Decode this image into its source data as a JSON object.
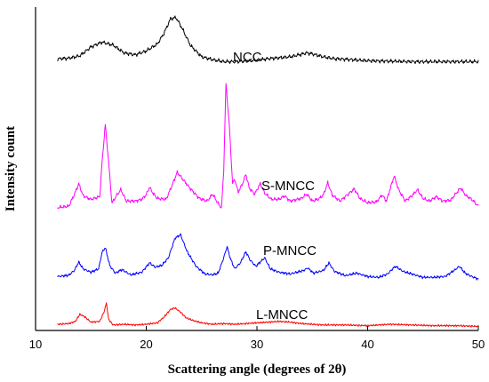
{
  "chart_data": {
    "type": "line",
    "title": "",
    "xlabel": "Scattering angle (degrees of 2θ)",
    "ylabel": "Intensity count",
    "xlim": [
      10,
      50
    ],
    "xticks": [
      10,
      20,
      30,
      40,
      50
    ],
    "xtick_labels": [
      "10",
      "20",
      "30",
      "40",
      "50"
    ],
    "grid": false,
    "legend": "inline labels",
    "series": [
      {
        "name": "NCC",
        "color": "#000000",
        "points": [
          [
            12.0,
            0.18
          ],
          [
            13.0,
            0.19
          ],
          [
            14.0,
            0.24
          ],
          [
            15.0,
            0.42
          ],
          [
            16.0,
            0.52
          ],
          [
            17.0,
            0.46
          ],
          [
            18.0,
            0.3
          ],
          [
            19.0,
            0.26
          ],
          [
            20.0,
            0.34
          ],
          [
            21.0,
            0.48
          ],
          [
            21.6,
            0.7
          ],
          [
            22.2,
            1.0
          ],
          [
            22.7,
            1.02
          ],
          [
            23.2,
            0.82
          ],
          [
            24.0,
            0.45
          ],
          [
            25.0,
            0.22
          ],
          [
            26.0,
            0.16
          ],
          [
            27.0,
            0.12
          ],
          [
            28.0,
            0.12
          ],
          [
            29.0,
            0.13
          ],
          [
            30.0,
            0.15
          ],
          [
            31.0,
            0.18
          ],
          [
            32.0,
            0.2
          ],
          [
            33.0,
            0.22
          ],
          [
            34.0,
            0.27
          ],
          [
            34.5,
            0.3
          ],
          [
            35.0,
            0.28
          ],
          [
            36.0,
            0.22
          ],
          [
            37.0,
            0.18
          ],
          [
            38.0,
            0.17
          ],
          [
            40.0,
            0.14
          ],
          [
            42.0,
            0.13
          ],
          [
            44.0,
            0.12
          ],
          [
            46.0,
            0.12
          ],
          [
            48.0,
            0.12
          ],
          [
            50.0,
            0.12
          ]
        ]
      },
      {
        "name": "S-MNCC",
        "color": "#ff00ff",
        "points": [
          [
            12.0,
            0.15
          ],
          [
            13.0,
            0.18
          ],
          [
            13.5,
            0.45
          ],
          [
            13.9,
            0.7
          ],
          [
            14.3,
            0.42
          ],
          [
            15.0,
            0.34
          ],
          [
            15.8,
            0.4
          ],
          [
            16.0,
            1.16
          ],
          [
            16.3,
            2.06
          ],
          [
            16.6,
            1.2
          ],
          [
            16.9,
            0.25
          ],
          [
            17.3,
            0.42
          ],
          [
            17.7,
            0.56
          ],
          [
            18.2,
            0.3
          ],
          [
            19.0,
            0.3
          ],
          [
            19.6,
            0.34
          ],
          [
            20.0,
            0.45
          ],
          [
            20.3,
            0.62
          ],
          [
            20.6,
            0.48
          ],
          [
            21.0,
            0.36
          ],
          [
            21.8,
            0.34
          ],
          [
            22.3,
            0.64
          ],
          [
            22.8,
            0.96
          ],
          [
            23.3,
            0.8
          ],
          [
            24.0,
            0.58
          ],
          [
            24.8,
            0.36
          ],
          [
            25.5,
            0.3
          ],
          [
            26.0,
            0.46
          ],
          [
            26.4,
            0.28
          ],
          [
            26.8,
            0.14
          ],
          [
            27.0,
            1.0
          ],
          [
            27.2,
            3.0
          ],
          [
            27.5,
            2.05
          ],
          [
            27.8,
            0.7
          ],
          [
            28.0,
            0.8
          ],
          [
            28.3,
            0.5
          ],
          [
            28.7,
            0.7
          ],
          [
            29.0,
            0.92
          ],
          [
            29.3,
            0.6
          ],
          [
            29.8,
            0.46
          ],
          [
            30.3,
            0.7
          ],
          [
            30.7,
            0.48
          ],
          [
            31.3,
            0.34
          ],
          [
            32.0,
            0.34
          ],
          [
            32.5,
            0.42
          ],
          [
            33.0,
            0.3
          ],
          [
            34.0,
            0.36
          ],
          [
            34.5,
            0.46
          ],
          [
            35.0,
            0.3
          ],
          [
            35.6,
            0.35
          ],
          [
            36.0,
            0.44
          ],
          [
            36.4,
            0.72
          ],
          [
            36.8,
            0.44
          ],
          [
            37.5,
            0.3
          ],
          [
            38.2,
            0.45
          ],
          [
            38.8,
            0.58
          ],
          [
            39.3,
            0.36
          ],
          [
            40.0,
            0.26
          ],
          [
            40.8,
            0.28
          ],
          [
            41.3,
            0.44
          ],
          [
            41.7,
            0.3
          ],
          [
            42.0,
            0.55
          ],
          [
            42.4,
            0.88
          ],
          [
            42.8,
            0.56
          ],
          [
            43.4,
            0.3
          ],
          [
            44.0,
            0.42
          ],
          [
            44.5,
            0.56
          ],
          [
            45.0,
            0.36
          ],
          [
            45.6,
            0.3
          ],
          [
            46.2,
            0.4
          ],
          [
            46.8,
            0.3
          ],
          [
            47.5,
            0.32
          ],
          [
            48.0,
            0.48
          ],
          [
            48.4,
            0.6
          ],
          [
            48.9,
            0.42
          ],
          [
            49.4,
            0.34
          ],
          [
            50.0,
            0.18
          ]
        ]
      },
      {
        "name": "P-MNCC",
        "color": "#0000ff",
        "points": [
          [
            12.0,
            0.12
          ],
          [
            13.0,
            0.15
          ],
          [
            13.5,
            0.26
          ],
          [
            13.9,
            0.46
          ],
          [
            14.3,
            0.3
          ],
          [
            15.0,
            0.22
          ],
          [
            15.7,
            0.3
          ],
          [
            16.0,
            0.68
          ],
          [
            16.3,
            0.8
          ],
          [
            16.7,
            0.38
          ],
          [
            17.2,
            0.2
          ],
          [
            17.8,
            0.28
          ],
          [
            18.6,
            0.16
          ],
          [
            19.6,
            0.22
          ],
          [
            20.3,
            0.44
          ],
          [
            20.8,
            0.34
          ],
          [
            21.4,
            0.38
          ],
          [
            22.0,
            0.56
          ],
          [
            22.6,
            1.02
          ],
          [
            23.1,
            1.1
          ],
          [
            23.7,
            0.7
          ],
          [
            24.5,
            0.36
          ],
          [
            25.3,
            0.18
          ],
          [
            26.0,
            0.16
          ],
          [
            26.5,
            0.2
          ],
          [
            27.0,
            0.56
          ],
          [
            27.3,
            0.82
          ],
          [
            27.6,
            0.54
          ],
          [
            28.0,
            0.3
          ],
          [
            28.5,
            0.44
          ],
          [
            29.0,
            0.7
          ],
          [
            29.4,
            0.5
          ],
          [
            29.9,
            0.36
          ],
          [
            30.3,
            0.46
          ],
          [
            30.7,
            0.56
          ],
          [
            31.2,
            0.3
          ],
          [
            32.0,
            0.22
          ],
          [
            33.0,
            0.18
          ],
          [
            34.2,
            0.26
          ],
          [
            34.6,
            0.32
          ],
          [
            35.1,
            0.2
          ],
          [
            36.0,
            0.26
          ],
          [
            36.5,
            0.44
          ],
          [
            37.0,
            0.24
          ],
          [
            38.0,
            0.14
          ],
          [
            39.0,
            0.2
          ],
          [
            40.0,
            0.12
          ],
          [
            41.0,
            0.1
          ],
          [
            41.8,
            0.18
          ],
          [
            42.5,
            0.36
          ],
          [
            43.2,
            0.24
          ],
          [
            44.0,
            0.18
          ],
          [
            45.0,
            0.1
          ],
          [
            46.0,
            0.1
          ],
          [
            47.0,
            0.12
          ],
          [
            47.8,
            0.26
          ],
          [
            48.3,
            0.36
          ],
          [
            48.8,
            0.2
          ],
          [
            49.4,
            0.12
          ],
          [
            50.0,
            0.06
          ]
        ]
      },
      {
        "name": "L-MNCC",
        "color": "#ff0000",
        "points": [
          [
            12.0,
            0.1
          ],
          [
            13.0,
            0.12
          ],
          [
            13.6,
            0.18
          ],
          [
            14.0,
            0.38
          ],
          [
            14.4,
            0.32
          ],
          [
            15.0,
            0.16
          ],
          [
            15.8,
            0.18
          ],
          [
            16.2,
            0.46
          ],
          [
            16.4,
            0.7
          ],
          [
            16.6,
            0.24
          ],
          [
            17.0,
            0.08
          ],
          [
            18.0,
            0.1
          ],
          [
            19.0,
            0.08
          ],
          [
            20.0,
            0.1
          ],
          [
            21.0,
            0.14
          ],
          [
            21.6,
            0.3
          ],
          [
            22.2,
            0.52
          ],
          [
            22.6,
            0.56
          ],
          [
            23.1,
            0.44
          ],
          [
            23.6,
            0.28
          ],
          [
            24.3,
            0.2
          ],
          [
            25.0,
            0.14
          ],
          [
            26.0,
            0.1
          ],
          [
            27.0,
            0.12
          ],
          [
            28.0,
            0.1
          ],
          [
            29.0,
            0.12
          ],
          [
            30.0,
            0.14
          ],
          [
            31.0,
            0.16
          ],
          [
            32.0,
            0.18
          ],
          [
            33.0,
            0.16
          ],
          [
            34.0,
            0.12
          ],
          [
            35.0,
            0.1
          ],
          [
            36.0,
            0.08
          ],
          [
            38.0,
            0.08
          ],
          [
            40.0,
            0.06
          ],
          [
            42.0,
            0.1
          ],
          [
            44.0,
            0.08
          ],
          [
            46.0,
            0.06
          ],
          [
            48.0,
            0.06
          ],
          [
            50.0,
            0.04
          ]
        ]
      }
    ]
  }
}
